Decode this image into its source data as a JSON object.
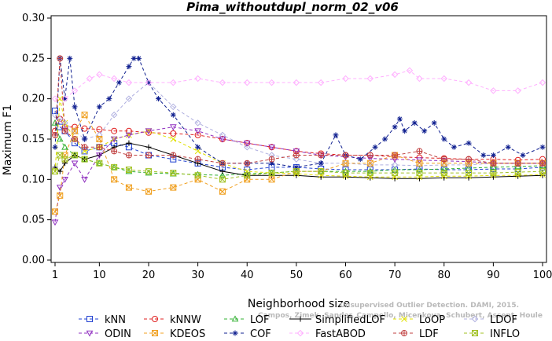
{
  "chart_data": {
    "type": "line",
    "title": "Pima_withoutdupl_norm_02_v06",
    "xlabel": "Neighborhood size",
    "ylabel": "Maximum F1",
    "xlim": [
      1,
      100
    ],
    "ylim": [
      0,
      0.3
    ],
    "x_ticks": [
      1,
      10,
      20,
      30,
      40,
      50,
      60,
      70,
      80,
      90,
      100
    ],
    "y_ticks": [
      "0.00",
      "0.05",
      "0.10",
      "0.15",
      "0.20",
      "0.25",
      "0.30"
    ],
    "grid": false,
    "legend_position": "bottom",
    "series": [
      {
        "name": "kNN",
        "color": "#2040d0",
        "marker": "square",
        "dash": "4,3",
        "x": [
          1,
          2,
          3,
          5,
          7,
          10,
          13,
          16,
          20,
          25,
          30,
          35,
          40,
          45,
          50,
          55,
          60,
          65,
          70,
          75,
          80,
          85,
          90,
          95,
          100
        ],
        "values": [
          0.185,
          0.165,
          0.16,
          0.145,
          0.135,
          0.14,
          0.145,
          0.14,
          0.13,
          0.125,
          0.12,
          0.115,
          0.112,
          0.115,
          0.115,
          0.113,
          0.112,
          0.112,
          0.112,
          0.113,
          0.112,
          0.112,
          0.113,
          0.113,
          0.115
        ]
      },
      {
        "name": "kNNW",
        "color": "#e02020",
        "marker": "circle",
        "dash": "4,3",
        "x": [
          1,
          2,
          3,
          5,
          7,
          10,
          13,
          16,
          20,
          25,
          30,
          35,
          40,
          45,
          50,
          55,
          60,
          65,
          70,
          75,
          80,
          85,
          90,
          95,
          100
        ],
        "values": [
          0.16,
          0.175,
          0.165,
          0.165,
          0.163,
          0.162,
          0.16,
          0.16,
          0.158,
          0.157,
          0.155,
          0.15,
          0.145,
          0.14,
          0.135,
          0.132,
          0.13,
          0.13,
          0.128,
          0.127,
          0.126,
          0.125,
          0.125,
          0.124,
          0.125
        ]
      },
      {
        "name": "LOF",
        "color": "#30b030",
        "marker": "triangle",
        "dash": "4,3",
        "x": [
          1,
          2,
          3,
          5,
          7,
          10,
          13,
          16,
          20,
          25,
          30,
          35,
          40,
          45,
          50,
          55,
          60,
          65,
          70,
          75,
          80,
          85,
          90,
          95,
          100
        ],
        "values": [
          0.17,
          0.15,
          0.14,
          0.13,
          0.125,
          0.12,
          0.115,
          0.11,
          0.108,
          0.107,
          0.106,
          0.105,
          0.107,
          0.108,
          0.11,
          0.11,
          0.11,
          0.11,
          0.112,
          0.112,
          0.113,
          0.114,
          0.115,
          0.116,
          0.117
        ]
      },
      {
        "name": "SimplifiedLOF",
        "color": "#000000",
        "marker": "plus",
        "dash": "",
        "x": [
          1,
          2,
          3,
          5,
          7,
          10,
          13,
          16,
          20,
          25,
          30,
          35,
          40,
          45,
          50,
          55,
          60,
          65,
          70,
          75,
          80,
          85,
          90,
          95,
          100
        ],
        "values": [
          0.115,
          0.11,
          0.12,
          0.13,
          0.125,
          0.13,
          0.14,
          0.145,
          0.14,
          0.13,
          0.12,
          0.11,
          0.105,
          0.105,
          0.105,
          0.103,
          0.103,
          0.102,
          0.101,
          0.101,
          0.102,
          0.102,
          0.103,
          0.104,
          0.105
        ]
      },
      {
        "name": "LoOP",
        "color": "#e0e000",
        "marker": "x",
        "dash": "4,3",
        "x": [
          1,
          2,
          3,
          5,
          7,
          10,
          13,
          16,
          20,
          25,
          30,
          35,
          40,
          45,
          50,
          55,
          60,
          65,
          70,
          75,
          80,
          85,
          90,
          95,
          100
        ],
        "values": [
          0.11,
          0.2,
          0.17,
          0.15,
          0.135,
          0.14,
          0.15,
          0.155,
          0.16,
          0.15,
          0.135,
          0.12,
          0.11,
          0.108,
          0.107,
          0.105,
          0.104,
          0.103,
          0.103,
          0.103,
          0.104,
          0.104,
          0.105,
          0.105,
          0.106
        ]
      },
      {
        "name": "LDOF",
        "color": "#b0b0e0",
        "marker": "diamond",
        "dash": "4,3",
        "x": [
          1,
          2,
          3,
          5,
          7,
          10,
          13,
          16,
          20,
          25,
          30,
          35,
          40,
          45,
          50,
          55,
          60,
          65,
          70,
          75,
          80,
          85,
          90,
          95,
          100
        ],
        "values": [
          0.18,
          0.175,
          0.17,
          0.16,
          0.15,
          0.155,
          0.18,
          0.2,
          0.22,
          0.19,
          0.17,
          0.155,
          0.14,
          0.13,
          0.125,
          0.12,
          0.12,
          0.118,
          0.118,
          0.117,
          0.118,
          0.118,
          0.12,
          0.12,
          0.12
        ]
      },
      {
        "name": "ODIN",
        "color": "#9030c0",
        "marker": "triangle-down",
        "dash": "4,3",
        "x": [
          1,
          2,
          3,
          5,
          7,
          10,
          13,
          16,
          20,
          25,
          30,
          35,
          40,
          45,
          50,
          55,
          60,
          65,
          70,
          75,
          80,
          85,
          90,
          95,
          100
        ],
        "values": [
          0.047,
          0.09,
          0.1,
          0.12,
          0.1,
          0.13,
          0.15,
          0.155,
          0.16,
          0.165,
          0.16,
          0.15,
          0.145,
          0.14,
          0.135,
          0.13,
          0.128,
          0.126,
          0.125,
          0.124,
          0.123,
          0.122,
          0.12,
          0.12,
          0.12
        ]
      },
      {
        "name": "KDEOS",
        "color": "#f0a020",
        "marker": "square-x",
        "dash": "4,3",
        "x": [
          1,
          2,
          3,
          5,
          7,
          10,
          13,
          16,
          20,
          25,
          30,
          35,
          40,
          45,
          50,
          55,
          60,
          65,
          70,
          75,
          80,
          85,
          90,
          95,
          100
        ],
        "values": [
          0.06,
          0.08,
          0.13,
          0.16,
          0.18,
          0.15,
          0.1,
          0.09,
          0.085,
          0.09,
          0.1,
          0.085,
          0.1,
          0.1,
          0.11,
          0.11,
          0.12,
          0.12,
          0.13,
          0.12,
          0.12,
          0.12,
          0.12,
          0.12,
          0.12
        ]
      },
      {
        "name": "COF",
        "color": "#102090",
        "marker": "asterisk",
        "dash": "4,3",
        "x": [
          1,
          2,
          3,
          4,
          5,
          7,
          10,
          12,
          14,
          16,
          17,
          18,
          20,
          22,
          25,
          30,
          35,
          40,
          45,
          50,
          55,
          58,
          60,
          63,
          66,
          68,
          70,
          71,
          72,
          74,
          76,
          78,
          80,
          82,
          85,
          88,
          90,
          93,
          96,
          100
        ],
        "values": [
          0.14,
          0.25,
          0.2,
          0.25,
          0.19,
          0.15,
          0.19,
          0.2,
          0.22,
          0.24,
          0.25,
          0.25,
          0.22,
          0.2,
          0.18,
          0.14,
          0.12,
          0.12,
          0.12,
          0.115,
          0.12,
          0.155,
          0.13,
          0.125,
          0.14,
          0.15,
          0.165,
          0.175,
          0.16,
          0.17,
          0.16,
          0.17,
          0.15,
          0.14,
          0.145,
          0.13,
          0.13,
          0.14,
          0.13,
          0.14
        ]
      },
      {
        "name": "FastABOD",
        "color": "#ffb0ff",
        "marker": "diamond",
        "dash": "4,3",
        "x": [
          1,
          3,
          5,
          8,
          10,
          13,
          16,
          20,
          25,
          30,
          35,
          40,
          45,
          50,
          55,
          60,
          65,
          70,
          73,
          75,
          80,
          85,
          90,
          95,
          100
        ],
        "values": [
          0.2,
          0.2,
          0.21,
          0.225,
          0.23,
          0.225,
          0.22,
          0.22,
          0.22,
          0.225,
          0.22,
          0.22,
          0.22,
          0.22,
          0.22,
          0.225,
          0.225,
          0.23,
          0.235,
          0.225,
          0.225,
          0.22,
          0.21,
          0.21,
          0.22
        ]
      },
      {
        "name": "LDF",
        "color": "#c04040",
        "marker": "circle-plus",
        "dash": "4,3",
        "x": [
          1,
          2,
          3,
          5,
          7,
          10,
          13,
          16,
          20,
          25,
          30,
          35,
          40,
          45,
          50,
          55,
          60,
          65,
          70,
          75,
          80,
          85,
          90,
          95,
          100
        ],
        "values": [
          0.155,
          0.25,
          0.16,
          0.15,
          0.14,
          0.14,
          0.135,
          0.13,
          0.13,
          0.13,
          0.125,
          0.12,
          0.12,
          0.125,
          0.13,
          0.13,
          0.13,
          0.13,
          0.13,
          0.135,
          0.125,
          0.125,
          0.12,
          0.12,
          0.12
        ]
      },
      {
        "name": "INFLO",
        "color": "#a0c020",
        "marker": "square-x",
        "dash": "4,3",
        "x": [
          1,
          2,
          3,
          5,
          7,
          10,
          13,
          16,
          20,
          25,
          30,
          35,
          40,
          45,
          50,
          55,
          60,
          65,
          70,
          75,
          80,
          85,
          90,
          95,
          100
        ],
        "values": [
          0.11,
          0.13,
          0.125,
          0.13,
          0.125,
          0.12,
          0.115,
          0.112,
          0.11,
          0.108,
          0.105,
          0.1,
          0.105,
          0.108,
          0.11,
          0.11,
          0.108,
          0.108,
          0.108,
          0.108,
          0.108,
          0.108,
          0.108,
          0.109,
          0.11
        ]
      }
    ],
    "watermark": [
      "Campos, Zimek, Sander, Campello, Micenkova, Schubert, Assent, Houle",
      "Unsupervised Outlier Detection. DAMI, 2015."
    ]
  }
}
